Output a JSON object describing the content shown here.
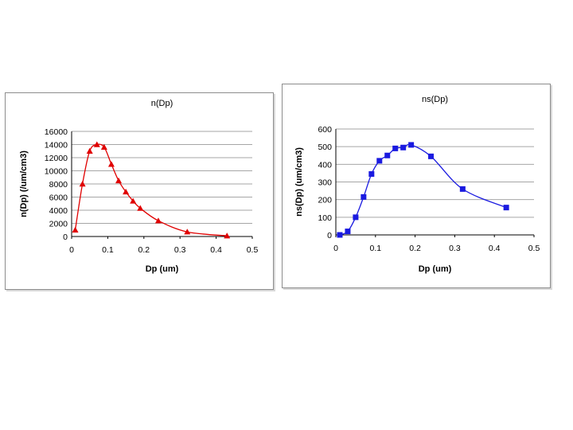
{
  "chart_data": [
    {
      "type": "line",
      "title": "n(Dp)",
      "xlabel": "Dp (um)",
      "ylabel": "n(Dp) (/um/cm3)",
      "xlim": [
        0,
        0.5
      ],
      "ylim": [
        0,
        16000
      ],
      "xticks": [
        "0",
        "0.1",
        "0.2",
        "0.3",
        "0.4",
        "0.5"
      ],
      "yticks": [
        "0",
        "2000",
        "4000",
        "6000",
        "8000",
        "10000",
        "12000",
        "14000",
        "16000"
      ],
      "grid": true,
      "marker": "triangle",
      "color": "#e00000",
      "x": [
        0.01,
        0.03,
        0.05,
        0.07,
        0.09,
        0.11,
        0.13,
        0.15,
        0.17,
        0.19,
        0.24,
        0.32,
        0.43
      ],
      "y": [
        1000,
        8000,
        13000,
        14000,
        13600,
        11000,
        8500,
        6800,
        5400,
        4300,
        2400,
        700,
        100
      ]
    },
    {
      "type": "line",
      "title": "ns(Dp)",
      "xlabel": "Dp (um)",
      "ylabel": "ns(Dp) (um/cm3)",
      "xlim": [
        0,
        0.5
      ],
      "ylim": [
        0,
        600
      ],
      "xticks": [
        "0",
        "0.1",
        "0.2",
        "0.3",
        "0.4",
        "0.5"
      ],
      "yticks": [
        "0",
        "100",
        "200",
        "300",
        "400",
        "500",
        "600"
      ],
      "grid": true,
      "marker": "square",
      "color": "#1a1ae0",
      "x": [
        0.01,
        0.03,
        0.05,
        0.07,
        0.09,
        0.11,
        0.13,
        0.15,
        0.17,
        0.19,
        0.24,
        0.32,
        0.43
      ],
      "y": [
        0,
        20,
        100,
        215,
        345,
        420,
        450,
        490,
        495,
        510,
        445,
        260,
        155
      ]
    }
  ]
}
